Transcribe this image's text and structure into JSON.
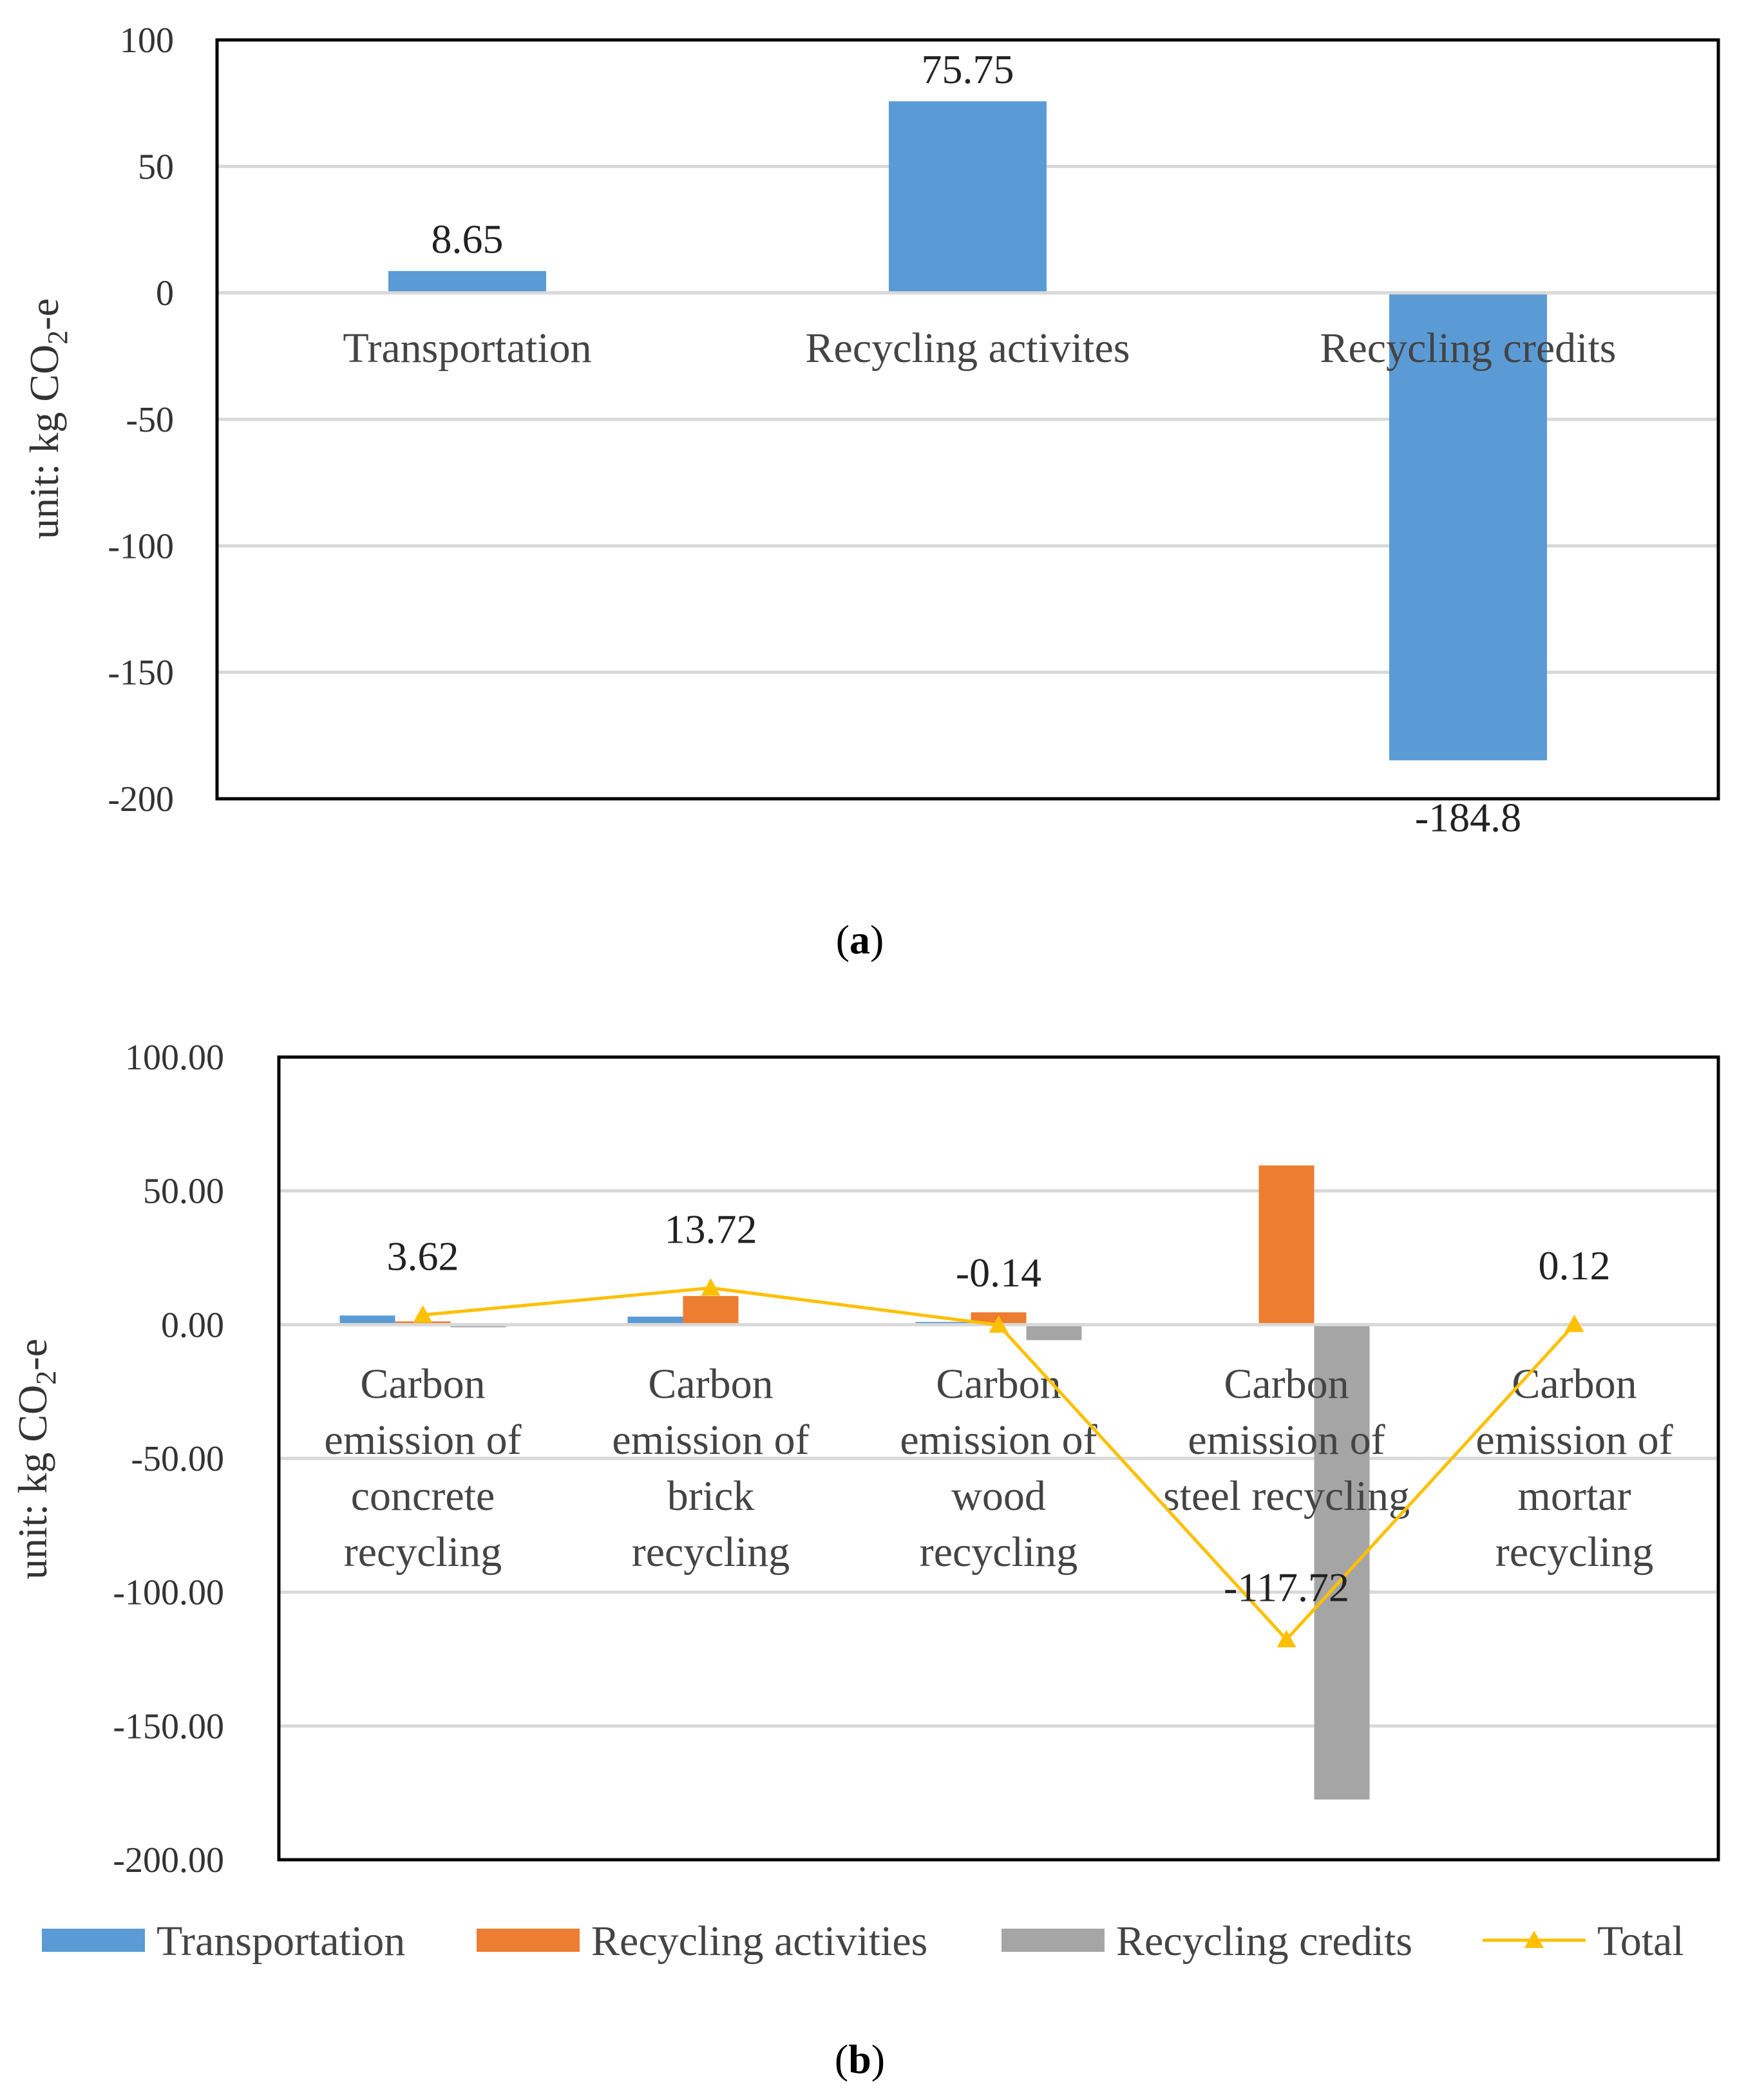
{
  "chart_data": [
    {
      "type": "bar",
      "panel_label": "a",
      "ylabel": "unit: kg CO2-e",
      "ylim": [
        -200,
        100
      ],
      "yticks": [
        "100",
        "50",
        "0",
        "-50",
        "-100",
        "-150",
        "-200"
      ],
      "categories": [
        "Transportation",
        "Recycling activites",
        "Recycling credits"
      ],
      "values": [
        8.65,
        75.75,
        -184.8
      ],
      "data_labels": [
        "8.65",
        "75.75",
        "-184.8"
      ],
      "grid": true,
      "color": "#5b9bd5"
    },
    {
      "type": "bar",
      "panel_label": "b",
      "ylabel": "unit: kg CO2-e",
      "ylim": [
        -200,
        100
      ],
      "yticks": [
        "100.00",
        "50.00",
        "0.00",
        "-50.00",
        "-100.00",
        "-150.00",
        "-200.00"
      ],
      "categories": [
        [
          "Carbon",
          "emission of",
          "concrete",
          "recycling"
        ],
        [
          "Carbon",
          "emission of",
          "brick",
          "recycling"
        ],
        [
          "Carbon",
          "emission of",
          "wood",
          "recycling"
        ],
        [
          "Carbon",
          "emission of",
          "steel recycling"
        ],
        [
          "Carbon",
          "emission of",
          "mortar",
          "recycling"
        ]
      ],
      "series": [
        {
          "name": "Transportation",
          "kind": "bar",
          "color": "#5b9bd5",
          "values": [
            3.4,
            3.0,
            1.0,
            0.3,
            0.05
          ]
        },
        {
          "name": "Recycling activities",
          "kind": "bar",
          "color": "#ed7d31",
          "values": [
            1.2,
            10.7,
            4.6,
            59.5,
            0.07
          ]
        },
        {
          "name": "Recycling credits",
          "kind": "bar",
          "color": "#a5a5a5",
          "values": [
            -1.0,
            0.0,
            -5.8,
            -177.5,
            0.0
          ]
        },
        {
          "name": "Total",
          "kind": "line",
          "color": "#ffc000",
          "values": [
            3.62,
            13.72,
            -0.14,
            -117.72,
            0.12
          ]
        }
      ],
      "data_labels": [
        "3.62",
        "13.72",
        "-0.14",
        "-117.72",
        "0.12"
      ],
      "legend_position": "bottom",
      "grid": true
    }
  ]
}
